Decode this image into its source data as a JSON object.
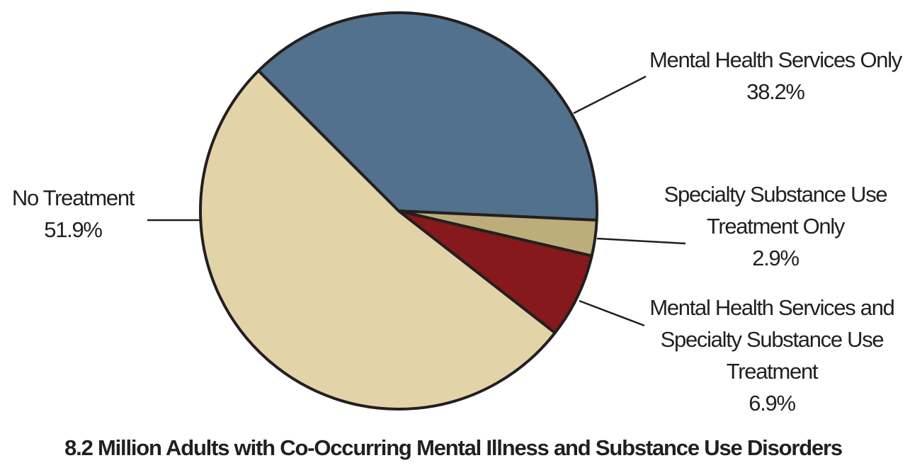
{
  "chart_data": {
    "type": "pie",
    "title": "8.2 Million Adults with Co-Occurring Mental Illness and Substance Use Disorders",
    "categories": [
      "Mental Health Services Only",
      "Specialty Substance Use Treatment Only",
      "Mental Health Services and Specialty Substance Use Treatment",
      "No Treatment"
    ],
    "values": [
      38.2,
      2.9,
      6.9,
      51.9
    ],
    "value_labels": [
      "38.2%",
      "2.9%",
      "6.9%",
      "51.9%"
    ],
    "colors": [
      "#52718c",
      "#bcad7a",
      "#85191c",
      "#e3d3a8"
    ]
  }
}
